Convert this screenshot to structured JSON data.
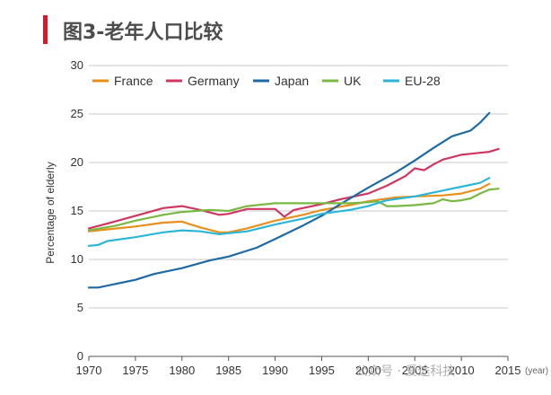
{
  "header": {
    "title": "图3-老年人口比较",
    "accent_color": "#d7182a"
  },
  "watermark": {
    "text": "公众号 · 爱途科技"
  },
  "chart_data": {
    "type": "line",
    "title": "",
    "xlabel": "",
    "ylabel": "Percentage of elderly",
    "x_unit": "(year)",
    "xlim": [
      1970,
      2015
    ],
    "ylim": [
      0,
      30
    ],
    "xticks": [
      "1970",
      "1975",
      "1980",
      "1985",
      "1990",
      "1995",
      "2000",
      "2005",
      "2010",
      "2015"
    ],
    "yticks": [
      "0",
      "5",
      "10",
      "15",
      "20",
      "25",
      "30"
    ],
    "grid": "horizontal",
    "legend_position": "top",
    "series": [
      {
        "name": "France",
        "color": "#e8901b",
        "points": [
          [
            1970,
            12.9
          ],
          [
            1972,
            13.1
          ],
          [
            1975,
            13.4
          ],
          [
            1978,
            13.8
          ],
          [
            1980,
            13.9
          ],
          [
            1982,
            13.3
          ],
          [
            1984,
            12.8
          ],
          [
            1985,
            12.8
          ],
          [
            1987,
            13.2
          ],
          [
            1990,
            14.0
          ],
          [
            1993,
            14.6
          ],
          [
            1995,
            15.1
          ],
          [
            1998,
            15.6
          ],
          [
            2000,
            16.0
          ],
          [
            2003,
            16.4
          ],
          [
            2005,
            16.5
          ],
          [
            2008,
            16.6
          ],
          [
            2010,
            16.8
          ],
          [
            2012,
            17.3
          ],
          [
            2013,
            17.8
          ]
        ]
      },
      {
        "name": "Germany",
        "color": "#cf3761",
        "points": [
          [
            1970,
            13.2
          ],
          [
            1972,
            13.7
          ],
          [
            1975,
            14.5
          ],
          [
            1978,
            15.3
          ],
          [
            1980,
            15.5
          ],
          [
            1982,
            15.1
          ],
          [
            1984,
            14.6
          ],
          [
            1985,
            14.7
          ],
          [
            1987,
            15.2
          ],
          [
            1990,
            15.2
          ],
          [
            1991,
            14.4
          ],
          [
            1992,
            15.1
          ],
          [
            1995,
            15.7
          ],
          [
            1997,
            16.2
          ],
          [
            2000,
            16.8
          ],
          [
            2002,
            17.6
          ],
          [
            2004,
            18.6
          ],
          [
            2005,
            19.4
          ],
          [
            2006,
            19.2
          ],
          [
            2007,
            19.8
          ],
          [
            2008,
            20.3
          ],
          [
            2010,
            20.8
          ],
          [
            2011,
            20.9
          ],
          [
            2012,
            21.0
          ],
          [
            2013,
            21.1
          ],
          [
            2014,
            21.4
          ]
        ]
      },
      {
        "name": "Japan",
        "color": "#1d6aa5",
        "points": [
          [
            1970,
            7.1
          ],
          [
            1971,
            7.1
          ],
          [
            1973,
            7.5
          ],
          [
            1975,
            7.9
          ],
          [
            1977,
            8.5
          ],
          [
            1980,
            9.1
          ],
          [
            1983,
            9.9
          ],
          [
            1985,
            10.3
          ],
          [
            1988,
            11.2
          ],
          [
            1990,
            12.1
          ],
          [
            1993,
            13.5
          ],
          [
            1995,
            14.5
          ],
          [
            1997,
            15.7
          ],
          [
            2000,
            17.4
          ],
          [
            2003,
            19.0
          ],
          [
            2005,
            20.2
          ],
          [
            2007,
            21.5
          ],
          [
            2009,
            22.7
          ],
          [
            2011,
            23.3
          ],
          [
            2012,
            24.1
          ],
          [
            2013,
            25.1
          ]
        ]
      },
      {
        "name": "UK",
        "color": "#79b843",
        "points": [
          [
            1970,
            13.0
          ],
          [
            1973,
            13.5
          ],
          [
            1975,
            14.0
          ],
          [
            1978,
            14.6
          ],
          [
            1980,
            14.9
          ],
          [
            1983,
            15.1
          ],
          [
            1985,
            15.0
          ],
          [
            1987,
            15.5
          ],
          [
            1990,
            15.8
          ],
          [
            1993,
            15.8
          ],
          [
            1995,
            15.8
          ],
          [
            1998,
            15.8
          ],
          [
            2000,
            15.9
          ],
          [
            2001,
            16.0
          ],
          [
            2002,
            15.5
          ],
          [
            2003,
            15.5
          ],
          [
            2005,
            15.6
          ],
          [
            2007,
            15.8
          ],
          [
            2008,
            16.2
          ],
          [
            2009,
            16.0
          ],
          [
            2010,
            16.1
          ],
          [
            2011,
            16.3
          ],
          [
            2012,
            16.8
          ],
          [
            2013,
            17.2
          ],
          [
            2014,
            17.3
          ]
        ]
      },
      {
        "name": "EU-28",
        "color": "#2bb6d8",
        "points": [
          [
            1970,
            11.4
          ],
          [
            1971,
            11.5
          ],
          [
            1972,
            11.9
          ],
          [
            1975,
            12.3
          ],
          [
            1978,
            12.8
          ],
          [
            1980,
            13.0
          ],
          [
            1982,
            12.9
          ],
          [
            1984,
            12.6
          ],
          [
            1985,
            12.7
          ],
          [
            1987,
            12.9
          ],
          [
            1990,
            13.6
          ],
          [
            1993,
            14.2
          ],
          [
            1995,
            14.7
          ],
          [
            1998,
            15.1
          ],
          [
            2000,
            15.5
          ],
          [
            2002,
            16.1
          ],
          [
            2005,
            16.5
          ],
          [
            2008,
            17.1
          ],
          [
            2010,
            17.5
          ],
          [
            2012,
            17.9
          ],
          [
            2013,
            18.4
          ]
        ]
      }
    ]
  }
}
